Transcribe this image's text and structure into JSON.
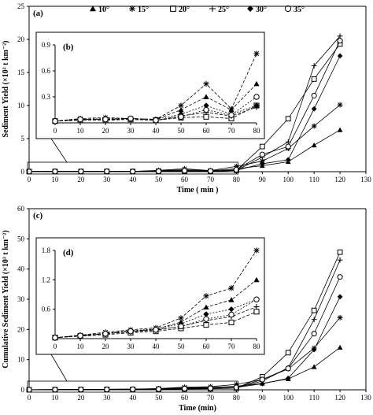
{
  "legend": {
    "items": [
      {
        "label": "10°",
        "marker": "tri"
      },
      {
        "label": "15°",
        "marker": "star"
      },
      {
        "label": "20°",
        "marker": "sq"
      },
      {
        "label": "25°",
        "marker": "plus"
      },
      {
        "label": "30°",
        "marker": "dia"
      },
      {
        "label": "35°",
        "marker": "circ"
      }
    ]
  },
  "chart_data": [
    {
      "id": "a",
      "panel_label": "(a)",
      "type": "line",
      "xlabel": "Time ( min )",
      "ylabel": "Sediment Yield (×10³ t km⁻²)",
      "x": [
        0,
        10,
        20,
        30,
        40,
        50,
        60,
        70,
        80,
        90,
        100,
        110,
        120
      ],
      "xlim": [
        0,
        130
      ],
      "xticks": [
        0,
        10,
        20,
        30,
        40,
        50,
        60,
        70,
        80,
        90,
        100,
        110,
        120,
        130
      ],
      "ylim": [
        0,
        25
      ],
      "yticks": [
        0,
        5,
        10,
        15,
        20,
        25
      ],
      "series": [
        {
          "name": "10°",
          "marker": "tri",
          "values": [
            0.02,
            0.04,
            0.04,
            0.05,
            0.04,
            0.15,
            0.3,
            0.15,
            0.45,
            0.9,
            1.5,
            4.0,
            6.3
          ]
        },
        {
          "name": "15°",
          "marker": "star",
          "values": [
            0.02,
            0.05,
            0.06,
            0.05,
            0.04,
            0.2,
            0.45,
            0.16,
            0.8,
            1.6,
            3.5,
            6.9,
            10.1
          ]
        },
        {
          "name": "20°",
          "marker": "sq",
          "values": [
            0.02,
            0.03,
            0.03,
            0.04,
            0.03,
            0.06,
            0.07,
            0.05,
            0.2,
            3.8,
            8.0,
            14.0,
            19.3
          ]
        },
        {
          "name": "25°",
          "marker": "plus",
          "values": [
            0.02,
            0.04,
            0.04,
            0.04,
            0.03,
            0.08,
            0.12,
            0.08,
            0.18,
            2.2,
            4.5,
            16.0,
            20.5
          ]
        },
        {
          "name": "30°",
          "marker": "dia",
          "values": [
            0.02,
            0.04,
            0.05,
            0.05,
            0.04,
            0.1,
            0.2,
            0.1,
            0.2,
            1.2,
            1.8,
            9.5,
            17.5
          ]
        },
        {
          "name": "35°",
          "marker": "circ",
          "values": [
            0.02,
            0.04,
            0.04,
            0.05,
            0.03,
            0.07,
            0.15,
            0.09,
            0.3,
            2.6,
            3.8,
            11.5,
            19.8
          ]
        }
      ]
    },
    {
      "id": "b",
      "panel_label": "(b)",
      "type": "line",
      "inset_of": "a",
      "x": [
        0,
        10,
        20,
        30,
        40,
        50,
        60,
        70,
        80
      ],
      "xlim": [
        0,
        80
      ],
      "xticks": [
        0,
        10,
        20,
        30,
        40,
        50,
        60,
        70,
        80
      ],
      "ylim": [
        0,
        0.9
      ],
      "yticks": [
        0.3,
        0.6,
        0.9
      ],
      "series": [
        {
          "name": "10°",
          "marker": "tri",
          "values": [
            0.02,
            0.04,
            0.04,
            0.05,
            0.04,
            0.15,
            0.3,
            0.15,
            0.45
          ]
        },
        {
          "name": "15°",
          "marker": "star",
          "values": [
            0.02,
            0.05,
            0.06,
            0.05,
            0.04,
            0.2,
            0.45,
            0.16,
            0.8
          ]
        },
        {
          "name": "20°",
          "marker": "sq",
          "values": [
            0.02,
            0.03,
            0.03,
            0.04,
            0.03,
            0.06,
            0.07,
            0.05,
            0.2
          ]
        },
        {
          "name": "25°",
          "marker": "plus",
          "values": [
            0.02,
            0.04,
            0.04,
            0.04,
            0.03,
            0.08,
            0.12,
            0.08,
            0.18
          ]
        },
        {
          "name": "30°",
          "marker": "dia",
          "values": [
            0.02,
            0.04,
            0.05,
            0.05,
            0.04,
            0.1,
            0.2,
            0.1,
            0.2
          ]
        },
        {
          "name": "35°",
          "marker": "circ",
          "values": [
            0.02,
            0.04,
            0.04,
            0.05,
            0.03,
            0.07,
            0.15,
            0.09,
            0.3
          ]
        }
      ]
    },
    {
      "id": "c",
      "panel_label": "(c)",
      "type": "line",
      "xlabel": "Time (min)",
      "ylabel": "Cumulative Sediment Yield (×10³ t km⁻²)",
      "x": [
        0,
        10,
        20,
        30,
        40,
        50,
        60,
        70,
        80,
        90,
        100,
        110,
        120
      ],
      "xlim": [
        0,
        130
      ],
      "xticks": [
        0,
        10,
        20,
        30,
        40,
        50,
        60,
        70,
        80,
        90,
        100,
        110,
        120,
        130
      ],
      "ylim": [
        0,
        60
      ],
      "yticks": [
        0,
        10,
        20,
        30,
        40,
        50,
        60
      ],
      "series": [
        {
          "name": "10°",
          "marker": "tri",
          "values": [
            0.02,
            0.06,
            0.1,
            0.15,
            0.19,
            0.34,
            0.64,
            0.79,
            1.2,
            2.1,
            3.6,
            7.6,
            14
          ]
        },
        {
          "name": "15°",
          "marker": "star",
          "values": [
            0.02,
            0.07,
            0.13,
            0.18,
            0.22,
            0.42,
            0.87,
            1.03,
            1.8,
            3.4,
            6.9,
            13.8,
            23.9
          ]
        },
        {
          "name": "20°",
          "marker": "sq",
          "values": [
            0.02,
            0.05,
            0.08,
            0.12,
            0.15,
            0.21,
            0.28,
            0.33,
            0.55,
            4.3,
            12.3,
            26.3,
            45.6
          ]
        },
        {
          "name": "25°",
          "marker": "plus",
          "values": [
            0.02,
            0.06,
            0.1,
            0.14,
            0.17,
            0.25,
            0.37,
            0.45,
            0.65,
            2.9,
            7.3,
            23.3,
            43
          ]
        },
        {
          "name": "30°",
          "marker": "dia",
          "values": [
            0.02,
            0.06,
            0.11,
            0.16,
            0.2,
            0.3,
            0.5,
            0.6,
            0.8,
            2.0,
            3.8,
            13.3,
            30.8
          ]
        },
        {
          "name": "35°",
          "marker": "circ",
          "values": [
            0.02,
            0.06,
            0.1,
            0.15,
            0.18,
            0.25,
            0.4,
            0.49,
            0.8,
            3.4,
            7.1,
            18.6,
            37.4
          ]
        }
      ]
    },
    {
      "id": "d",
      "panel_label": "(d)",
      "type": "line",
      "inset_of": "c",
      "x": [
        0,
        10,
        20,
        30,
        40,
        50,
        60,
        70,
        80
      ],
      "xlim": [
        0,
        80
      ],
      "xticks": [
        0,
        10,
        20,
        30,
        40,
        50,
        60,
        70,
        80
      ],
      "ylim": [
        0,
        1.8
      ],
      "yticks": [
        0.6,
        1.2,
        1.8
      ],
      "series": [
        {
          "name": "10°",
          "marker": "tri",
          "values": [
            0.02,
            0.06,
            0.1,
            0.15,
            0.19,
            0.34,
            0.64,
            0.79,
            1.2
          ]
        },
        {
          "name": "15°",
          "marker": "star",
          "values": [
            0.02,
            0.07,
            0.13,
            0.18,
            0.22,
            0.42,
            0.87,
            1.03,
            1.8
          ]
        },
        {
          "name": "20°",
          "marker": "sq",
          "values": [
            0.02,
            0.05,
            0.08,
            0.12,
            0.15,
            0.21,
            0.28,
            0.33,
            0.55
          ]
        },
        {
          "name": "25°",
          "marker": "plus",
          "values": [
            0.02,
            0.06,
            0.1,
            0.14,
            0.17,
            0.25,
            0.37,
            0.45,
            0.65
          ]
        },
        {
          "name": "30°",
          "marker": "dia",
          "values": [
            0.02,
            0.06,
            0.11,
            0.16,
            0.2,
            0.3,
            0.5,
            0.6,
            0.8
          ]
        },
        {
          "name": "35°",
          "marker": "circ",
          "values": [
            0.02,
            0.06,
            0.1,
            0.15,
            0.18,
            0.25,
            0.4,
            0.49,
            0.8
          ]
        }
      ]
    }
  ]
}
